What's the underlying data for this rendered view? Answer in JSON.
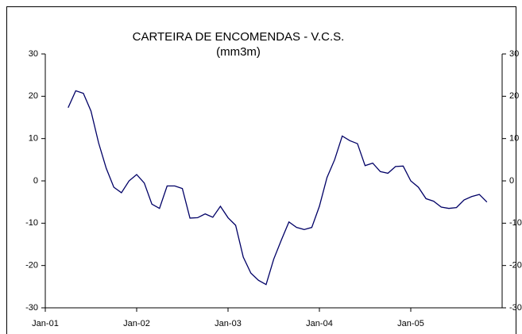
{
  "chart_data": {
    "type": "line",
    "title": "CARTEIRA DE ENCOMENDAS - V.C.S.",
    "subtitle": "(mm3m)",
    "x": [
      "2001-04",
      "2001-05",
      "2001-06",
      "2001-07",
      "2001-08",
      "2001-09",
      "2001-10",
      "2001-11",
      "2001-12",
      "2002-01",
      "2002-02",
      "2002-03",
      "2002-04",
      "2002-05",
      "2002-06",
      "2002-07",
      "2002-08",
      "2002-09",
      "2002-10",
      "2002-11",
      "2002-12",
      "2003-01",
      "2003-02",
      "2003-03",
      "2003-04",
      "2003-05",
      "2003-06",
      "2003-07",
      "2003-08",
      "2003-09",
      "2003-10",
      "2003-11",
      "2003-12",
      "2004-01",
      "2004-02",
      "2004-03",
      "2004-04",
      "2004-05",
      "2004-06",
      "2004-07",
      "2004-08",
      "2004-09",
      "2004-10",
      "2004-11",
      "2004-12",
      "2005-01",
      "2005-02",
      "2005-03",
      "2005-04",
      "2005-05",
      "2005-06",
      "2005-07",
      "2005-08",
      "2005-09",
      "2005-10",
      "2005-11"
    ],
    "series": [
      {
        "color": "#000066",
        "values": [
          17.3,
          21.3,
          20.7,
          16.5,
          9,
          3,
          -1.5,
          -2.8,
          0,
          1.5,
          -0.5,
          -5.5,
          -6.5,
          -1.2,
          -1.2,
          -1.8,
          -8.8,
          -8.7,
          -7.8,
          -8.6,
          -6,
          -8.7,
          -10.5,
          -18,
          -21.8,
          -23.5,
          -24.5,
          -18.5,
          -14,
          -9.7,
          -11,
          -11.5,
          -11,
          -6,
          0.8,
          5,
          10.6,
          9.5,
          8.8,
          3.6,
          4.2,
          2.2,
          1.8,
          3.4,
          3.5,
          0,
          -1.5,
          -4.2,
          -4.8,
          -6.2,
          -6.5,
          -6.3,
          -4.5,
          -3.7,
          -3.2,
          -5
        ]
      }
    ],
    "xlim": [
      "2001-01",
      "2006-01"
    ],
    "xticks": [
      {
        "value": "2001-01",
        "label": "Jan-01"
      },
      {
        "value": "2002-01",
        "label": "Jan-02"
      },
      {
        "value": "2003-01",
        "label": "Jan-03"
      },
      {
        "value": "2004-01",
        "label": "Jan-04"
      },
      {
        "value": "2005-01",
        "label": "Jan-05"
      }
    ],
    "ylim": [
      -30,
      30
    ],
    "yticks": [
      -30,
      -20,
      -10,
      0,
      10,
      20,
      30
    ]
  }
}
